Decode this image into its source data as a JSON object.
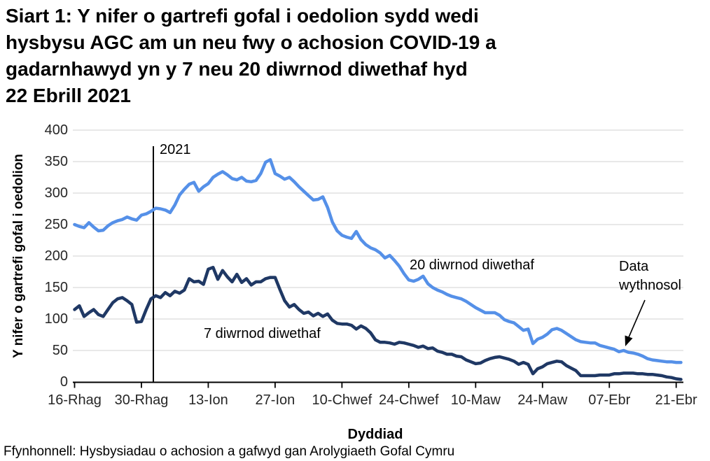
{
  "title": {
    "lines": [
      "Siart 1: Y nifer o gartrefi gofal i oedolion sydd wedi",
      "hysbysu AGC am un neu fwy o achosion COVID-19 a",
      "gadarnhawyd yn y 7 neu 20 diwrnod diwethaf hyd",
      "22 Ebrill 2021"
    ]
  },
  "source_note": "Ffynhonnell: Hysbysiadau o achosion a gafwyd gan Arolygiaeth Gofal Cymru",
  "chart_data": {
    "type": "line",
    "xlabel": "Dyddiad",
    "ylabel": "Y nifer o gartrefi gofal i oedolion",
    "ylim": [
      0,
      400
    ],
    "ytick_step": 50,
    "grid": "horizontal",
    "x_tick_labels": [
      "16-Rhag",
      "30-Rhag",
      "13-Ion",
      "27-Ion",
      "10-Chwef",
      "24-Chwef",
      "10-Maw",
      "24-Maw",
      "07-Ebr",
      "21-Ebr"
    ],
    "x_tick_indices": [
      0,
      14,
      28,
      42,
      56,
      70,
      84,
      98,
      112,
      126
    ],
    "annotations": {
      "year_label": "2021",
      "year_line_index": 16.5,
      "weekly_note_lines": [
        "Data",
        "wythnosol"
      ],
      "series_label_20": "20 diwrnod diwethaf",
      "series_label_7": "7 diwrnod diwethaf"
    },
    "colors": {
      "line_20": "#5590E8",
      "line_7": "#1F3864",
      "grid": "#D9D9D9",
      "axis": "#000000",
      "tick_text": "#262626"
    },
    "series": [
      {
        "name": "20 diwrnod diwethaf",
        "color": "#5590E8",
        "values": [
          250,
          247,
          245,
          253,
          246,
          240,
          241,
          248,
          253,
          256,
          258,
          262,
          259,
          257,
          265,
          267,
          271,
          276,
          275,
          273,
          269,
          281,
          297,
          306,
          314,
          317,
          303,
          310,
          315,
          325,
          330,
          334,
          329,
          323,
          321,
          325,
          319,
          318,
          320,
          331,
          349,
          353,
          331,
          327,
          322,
          325,
          318,
          310,
          303,
          296,
          289,
          290,
          294,
          277,
          254,
          240,
          233,
          230,
          228,
          239,
          226,
          218,
          213,
          210,
          205,
          197,
          201,
          193,
          184,
          172,
          162,
          160,
          163,
          168,
          156,
          150,
          146,
          143,
          139,
          136,
          134,
          132,
          128,
          123,
          118,
          114,
          110,
          110,
          110,
          106,
          99,
          96,
          94,
          88,
          82,
          84,
          61,
          68,
          71,
          76,
          83,
          85,
          82,
          77,
          72,
          67,
          64,
          63,
          62,
          62,
          58,
          56,
          54,
          52,
          48,
          50,
          47,
          46,
          44,
          41,
          37,
          35,
          34,
          33,
          32,
          32,
          31,
          31
        ]
      },
      {
        "name": "7 diwrnod diwethaf",
        "color": "#1F3864",
        "values": [
          115,
          121,
          104,
          110,
          115,
          107,
          104,
          115,
          126,
          132,
          134,
          129,
          123,
          95,
          96,
          115,
          132,
          137,
          134,
          142,
          137,
          144,
          141,
          146,
          164,
          159,
          160,
          155,
          179,
          182,
          163,
          177,
          167,
          159,
          171,
          158,
          164,
          154,
          159,
          159,
          164,
          166,
          166,
          147,
          129,
          119,
          123,
          115,
          109,
          111,
          105,
          109,
          104,
          108,
          98,
          93,
          92,
          92,
          90,
          84,
          89,
          85,
          78,
          67,
          63,
          63,
          62,
          60,
          63,
          62,
          60,
          58,
          55,
          57,
          53,
          54,
          49,
          47,
          44,
          44,
          41,
          40,
          35,
          32,
          29,
          30,
          34,
          37,
          39,
          40,
          38,
          36,
          33,
          28,
          31,
          28,
          13,
          21,
          24,
          29,
          31,
          33,
          32,
          26,
          22,
          18,
          10,
          10,
          10,
          10,
          11,
          11,
          11,
          13,
          13,
          14,
          14,
          14,
          13,
          13,
          12,
          12,
          11,
          10,
          8,
          7,
          5,
          4
        ]
      }
    ]
  }
}
